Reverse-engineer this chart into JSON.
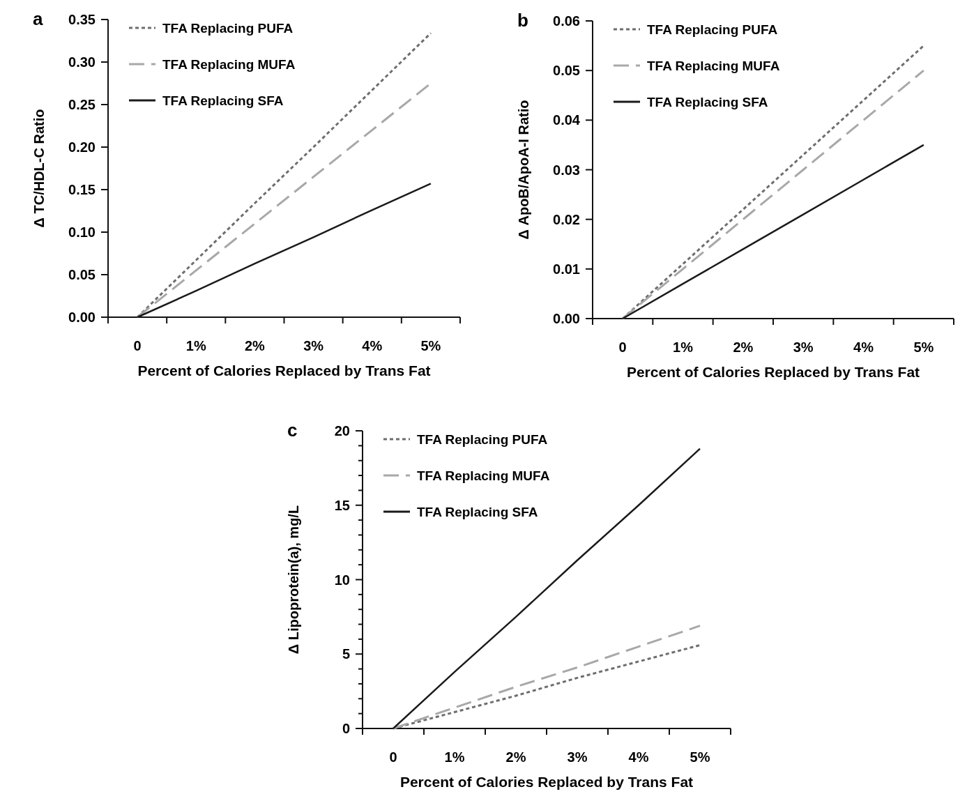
{
  "chart_data": [
    {
      "type": "line",
      "title": "a",
      "xlabel": "Percent of Calories Replaced by Trans Fat",
      "ylabel": "Δ TC/HDL-C Ratio",
      "categories": [
        "0",
        "1%",
        "2%",
        "3%",
        "4%",
        "5%"
      ],
      "ylim": [
        0,
        0.35
      ],
      "yticks": [
        {
          "value": 0,
          "label": "0.00"
        },
        {
          "value": 0.05,
          "label": "0.05"
        },
        {
          "value": 0.1,
          "label": "0.10"
        },
        {
          "value": 0.15,
          "label": "0.15"
        },
        {
          "value": 0.2,
          "label": "0.20"
        },
        {
          "value": 0.25,
          "label": "0.25"
        },
        {
          "value": 0.3,
          "label": "0.30"
        },
        {
          "value": 0.35,
          "label": "0.35"
        }
      ],
      "legend": "top left",
      "series": [
        {
          "name": "TFA Replacing PUFA",
          "color": "#6e6e6e",
          "line_style": "dotted",
          "values": [
            0,
            0.067,
            0.134,
            0.2,
            0.267,
            0.334
          ]
        },
        {
          "name": "TFA Replacing MUFA",
          "color": "#a8a8a8",
          "line_style": "dashed",
          "values": [
            0,
            0.055,
            0.11,
            0.165,
            0.22,
            0.275
          ]
        },
        {
          "name": "TFA Replacing SFA",
          "color": "#1a1a1a",
          "line_style": "solid",
          "values": [
            0,
            0.031,
            0.063,
            0.094,
            0.126,
            0.157
          ]
        }
      ]
    },
    {
      "type": "line",
      "title": "b",
      "xlabel": "Percent of Calories Replaced by Trans Fat",
      "ylabel": "Δ ApoB/ApoA-I Ratio",
      "categories": [
        "0",
        "1%",
        "2%",
        "3%",
        "4%",
        "5%"
      ],
      "ylim": [
        0,
        0.06
      ],
      "yticks": [
        {
          "value": 0,
          "label": "0.00"
        },
        {
          "value": 0.01,
          "label": "0.01"
        },
        {
          "value": 0.02,
          "label": "0.02"
        },
        {
          "value": 0.03,
          "label": "0.03"
        },
        {
          "value": 0.04,
          "label": "0.04"
        },
        {
          "value": 0.05,
          "label": "0.05"
        },
        {
          "value": 0.06,
          "label": "0.06"
        }
      ],
      "legend": "top left",
      "series": [
        {
          "name": "TFA Replacing PUFA",
          "color": "#6e6e6e",
          "line_style": "dotted",
          "values": [
            0,
            0.011,
            0.022,
            0.033,
            0.044,
            0.055
          ]
        },
        {
          "name": "TFA Replacing MUFA",
          "color": "#a8a8a8",
          "line_style": "dashed",
          "values": [
            0,
            0.01,
            0.02,
            0.03,
            0.04,
            0.05
          ]
        },
        {
          "name": "TFA Replacing SFA",
          "color": "#1a1a1a",
          "line_style": "solid",
          "values": [
            0,
            0.007,
            0.014,
            0.021,
            0.028,
            0.035
          ]
        }
      ]
    },
    {
      "type": "line",
      "title": "c",
      "xlabel": "Percent of Calories Replaced by Trans Fat",
      "ylabel": "Δ Lipoprotein(a), mg/L",
      "categories": [
        "0",
        "1%",
        "2%",
        "3%",
        "4%",
        "5%"
      ],
      "ylim": [
        0,
        20
      ],
      "yticks": [
        0,
        {
          "value": 1,
          "label": null
        },
        {
          "value": 2,
          "label": null
        },
        {
          "value": 3,
          "label": null
        },
        {
          "value": 4,
          "label": null
        },
        5,
        {
          "value": 6,
          "label": null
        },
        {
          "value": 7,
          "label": null
        },
        {
          "value": 8,
          "label": null
        },
        {
          "value": 9,
          "label": null
        },
        10,
        {
          "value": 11,
          "label": null
        },
        {
          "value": 12,
          "label": null
        },
        {
          "value": 13,
          "label": null
        },
        {
          "value": 14,
          "label": null
        },
        15,
        {
          "value": 16,
          "label": null
        },
        {
          "value": 17,
          "label": null
        },
        {
          "value": 18,
          "label": null
        },
        {
          "value": 19,
          "label": null
        },
        20
      ],
      "legend": "top left",
      "series": [
        {
          "name": "TFA Replacing PUFA",
          "color": "#6e6e6e",
          "line_style": "dotted",
          "values": [
            0,
            1.1,
            2.2,
            3.4,
            4.5,
            5.6
          ]
        },
        {
          "name": "TFA Replacing MUFA",
          "color": "#a8a8a8",
          "line_style": "dashed",
          "values": [
            0,
            1.4,
            2.8,
            4.1,
            5.5,
            6.9
          ]
        },
        {
          "name": "TFA Replacing SFA",
          "color": "#1a1a1a",
          "line_style": "solid",
          "values": [
            0,
            3.8,
            7.5,
            11.3,
            15.0,
            18.8
          ]
        }
      ]
    }
  ]
}
